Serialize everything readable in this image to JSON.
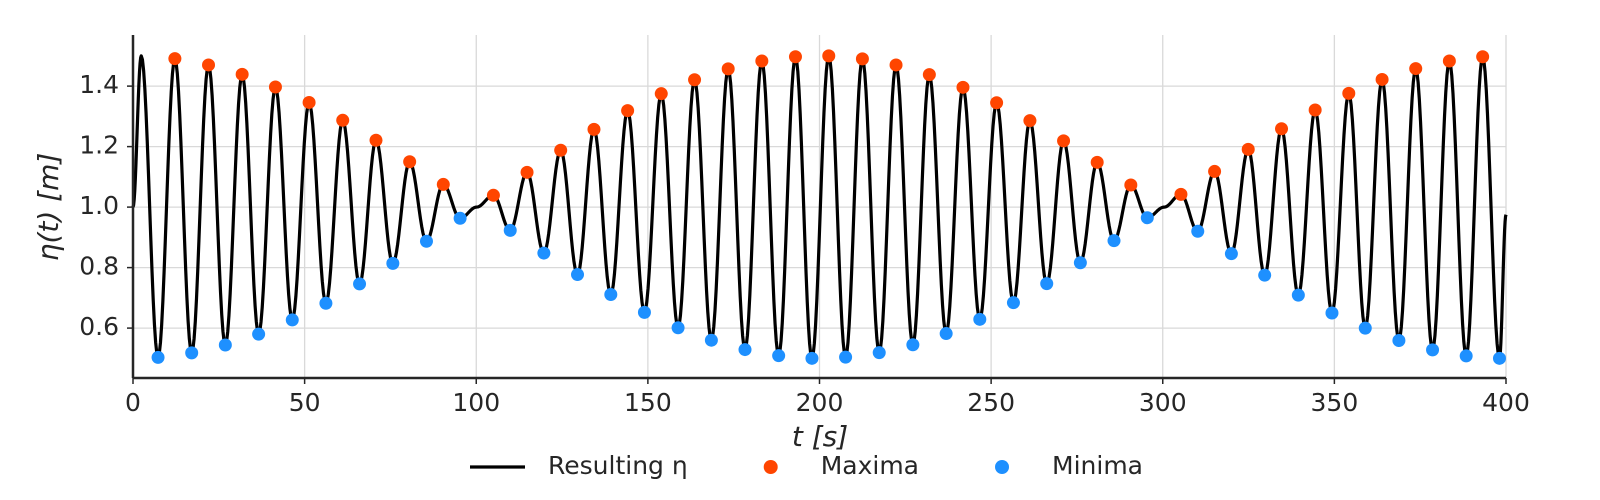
{
  "chart_data": {
    "type": "line",
    "xlabel": "t [s]",
    "ylabel": "η(t) [m]",
    "xlim": [
      0,
      400
    ],
    "ylim": [
      0.435,
      1.569
    ],
    "xticks": [
      0,
      50,
      100,
      150,
      200,
      250,
      300,
      350,
      400
    ],
    "yticks": [
      0.6,
      0.8,
      {
        "value": 1,
        "label": "1.0"
      },
      1.2,
      1.4
    ],
    "grid": true,
    "legend_loc": "lower center",
    "series": [
      {
        "name": "Resulting η",
        "type": "line",
        "color": "#000000",
        "x": [
          0,
          2.4,
          7.3,
          12.2,
          17.1,
          22.0,
          26.9,
          31.8,
          36.6,
          41.5,
          46.4,
          51.3,
          56.2,
          61.1,
          66.0,
          70.8,
          75.7,
          80.6,
          85.5,
          90.4,
          95.3,
          100.1,
          105.0,
          109.9,
          114.8,
          119.7,
          124.6,
          129.5,
          134.3,
          139.2,
          144.1,
          149.0,
          153.9,
          158.8,
          163.6,
          168.5,
          173.4,
          178.3,
          183.2,
          188.1,
          193.0,
          197.8,
          202.7,
          207.6,
          212.5,
          217.4,
          222.3,
          227.2,
          232.0,
          236.9,
          241.8,
          246.7,
          251.6,
          256.5,
          261.3,
          266.2,
          271.1,
          276.0,
          280.9,
          285.8,
          290.7,
          295.5,
          300.4,
          305.3,
          310.2,
          315.1,
          320.0,
          324.9,
          329.7,
          334.6,
          339.5,
          344.4,
          349.3,
          354.2,
          359.0,
          363.9,
          368.8,
          373.7,
          378.6,
          383.5,
          388.4,
          393.2,
          398.1,
          400
        ],
        "values": [
          1.0,
          1.5,
          0.503,
          1.491,
          0.518,
          1.47,
          0.544,
          1.439,
          0.58,
          1.397,
          0.627,
          1.346,
          0.682,
          1.287,
          0.746,
          1.221,
          0.814,
          1.15,
          0.887,
          1.075,
          0.963,
          1.0,
          1.039,
          0.923,
          1.115,
          0.848,
          1.188,
          0.777,
          1.257,
          0.711,
          1.319,
          0.652,
          1.375,
          0.601,
          1.421,
          0.56,
          1.457,
          0.529,
          1.483,
          0.509,
          1.497,
          0.5,
          1.5,
          0.504,
          1.49,
          0.519,
          1.47,
          0.545,
          1.438,
          0.582,
          1.396,
          0.629,
          1.345,
          0.684,
          1.286,
          0.747,
          1.219,
          0.816,
          1.148,
          0.889,
          1.073,
          0.965,
          1.0,
          1.042,
          0.92,
          1.118,
          0.846,
          1.191,
          0.775,
          1.259,
          0.709,
          1.321,
          0.65,
          1.376,
          0.6,
          1.422,
          0.559,
          1.458,
          0.528,
          1.483,
          0.508,
          1.497,
          0.5,
          0.975
        ]
      },
      {
        "name": "Maxima",
        "type": "scatter",
        "color": "#ff4500",
        "x": [
          12.2,
          22.0,
          31.8,
          41.5,
          51.3,
          61.1,
          70.8,
          80.6,
          90.4,
          105.0,
          114.8,
          124.6,
          134.3,
          144.1,
          153.9,
          163.6,
          173.4,
          183.2,
          193.0,
          202.7,
          212.5,
          222.3,
          232.0,
          241.8,
          251.6,
          261.3,
          271.1,
          280.9,
          290.7,
          305.3,
          315.1,
          324.9,
          334.6,
          344.4,
          354.2,
          363.9,
          373.7,
          383.5,
          393.2
        ],
        "values": [
          1.491,
          1.47,
          1.439,
          1.397,
          1.346,
          1.287,
          1.221,
          1.15,
          1.075,
          1.039,
          1.115,
          1.188,
          1.257,
          1.319,
          1.375,
          1.421,
          1.457,
          1.483,
          1.497,
          1.5,
          1.49,
          1.47,
          1.438,
          1.396,
          1.345,
          1.286,
          1.219,
          1.148,
          1.073,
          1.042,
          1.118,
          1.191,
          1.259,
          1.321,
          1.376,
          1.422,
          1.458,
          1.483,
          1.497
        ]
      },
      {
        "name": "Minima",
        "type": "scatter",
        "color": "#1e90ff",
        "x": [
          7.3,
          17.1,
          26.9,
          36.6,
          46.4,
          56.2,
          66.0,
          75.7,
          85.5,
          95.3,
          109.9,
          119.7,
          129.5,
          139.2,
          149.0,
          158.8,
          168.5,
          178.3,
          188.1,
          197.8,
          207.6,
          217.4,
          227.2,
          236.9,
          246.7,
          256.5,
          266.2,
          276.0,
          285.8,
          295.5,
          310.2,
          320.0,
          329.7,
          339.5,
          349.3,
          359.0,
          368.8,
          378.6,
          388.4,
          398.1
        ],
        "values": [
          0.503,
          0.518,
          0.544,
          0.58,
          0.627,
          0.682,
          0.746,
          0.814,
          0.887,
          0.963,
          0.923,
          0.848,
          0.777,
          0.711,
          0.652,
          0.601,
          0.56,
          0.529,
          0.509,
          0.5,
          0.504,
          0.519,
          0.545,
          0.582,
          0.629,
          0.684,
          0.747,
          0.816,
          0.889,
          0.965,
          0.92,
          0.846,
          0.775,
          0.709,
          0.65,
          0.6,
          0.559,
          0.528,
          0.508,
          0.5
        ]
      }
    ]
  }
}
